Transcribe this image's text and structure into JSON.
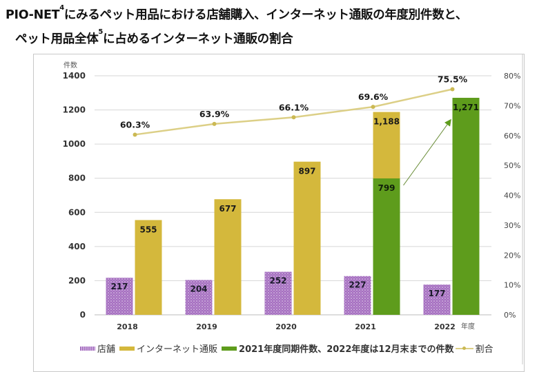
{
  "title": {
    "line1_prefix": "PIO-NET",
    "line1_sup": "4",
    "line1_suffix": "にみるペット用品における店舗購入、インターネット通販の年度別件数と、",
    "line2_prefix": "ペット用品全体",
    "line2_sup": "5",
    "line2_suffix": "に占めるインターネット通販の割合"
  },
  "chart_data": {
    "type": "bar",
    "title": "PIO-NETにみるペット用品における店舗購入、インターネット通販の年度別件数と、ペット用品全体に占めるインターネット通販の割合",
    "categories": [
      "2018",
      "2019",
      "2020",
      "2021",
      "2022"
    ],
    "xlabel": "年度",
    "ylabel": "件数",
    "ylim": [
      0,
      1400
    ],
    "yticks": [
      0,
      200,
      400,
      600,
      800,
      1000,
      1200,
      1400
    ],
    "y2label": "",
    "y2lim": [
      0,
      80
    ],
    "y2ticks": [
      "0%",
      "10%",
      "20%",
      "30%",
      "40%",
      "50%",
      "60%",
      "70%",
      "80%"
    ],
    "grid": true,
    "legend_position": "bottom",
    "series": [
      {
        "name": "店舗",
        "type": "bar",
        "color": "#a56fc0",
        "pattern": "dotted",
        "values": [
          217,
          204,
          252,
          227,
          177
        ],
        "labels": [
          "217",
          "204",
          "252",
          "227",
          "177"
        ]
      },
      {
        "name": "インターネット通販",
        "type": "bar",
        "color": "#d4b83c",
        "values": [
          555,
          677,
          897,
          1188,
          null
        ],
        "labels": [
          "555",
          "677",
          "897",
          "1,188",
          ""
        ]
      },
      {
        "name": "2021年度同期件数、2022年度は12月末までの件数",
        "type": "bar",
        "color": "#5e9c1c",
        "values": [
          null,
          null,
          null,
          799,
          1271
        ],
        "labels": [
          "",
          "",
          "",
          "799",
          "1,271"
        ]
      },
      {
        "name": "割合",
        "type": "line",
        "axis": "right",
        "color": "#dccf86",
        "values": [
          60.3,
          63.9,
          66.1,
          69.6,
          75.5
        ],
        "labels": [
          "60.3%",
          "63.9%",
          "66.1%",
          "69.6%",
          "75.5%"
        ]
      }
    ],
    "annotations": [
      {
        "type": "arrow",
        "from": "2021 同期件数 799",
        "to": "2022 1,271",
        "color": "#5e9c1c"
      }
    ]
  }
}
